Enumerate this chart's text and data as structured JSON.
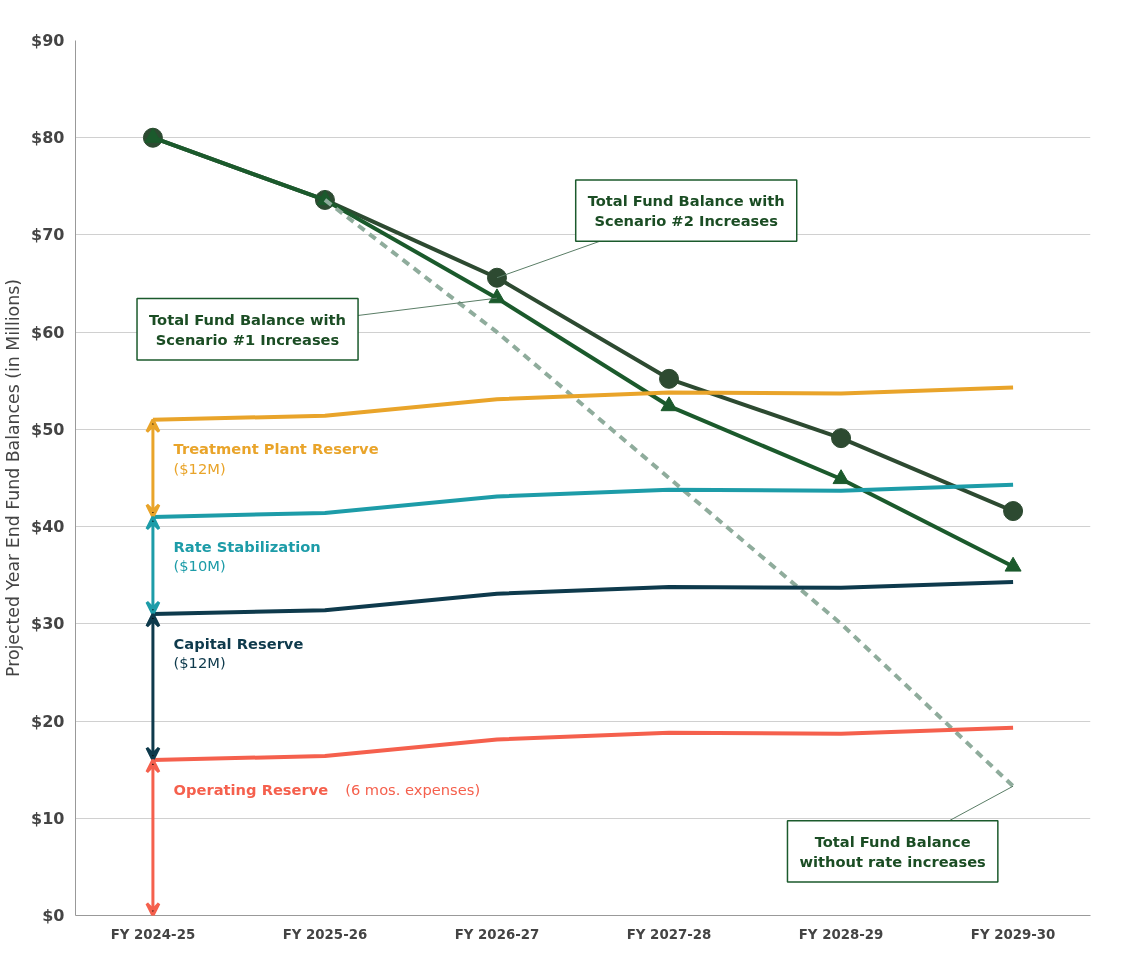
{
  "chart_data": {
    "type": "line",
    "ylabel": "Projected Year End Fund Balances (in Millions)",
    "categories": [
      "FY 2024-25",
      "FY 2025-26",
      "FY 2026-27",
      "FY 2027-28",
      "FY 2028-29",
      "FY 2029-30"
    ],
    "series": [
      {
        "color": "#2d4a31",
        "marker": "circle",
        "line_style": "solid",
        "values": [
          80,
          73.6,
          65.6,
          55.2,
          49.1,
          41.6
        ]
      },
      {
        "color": "#1b5a2c",
        "marker": "triangle",
        "line_style": "solid",
        "values": [
          80,
          73.6,
          63.5,
          52.4,
          44.9,
          35.9
        ]
      },
      {
        "color": "#8fac9c",
        "marker": "none",
        "line_style": "dashed",
        "values": [
          null,
          73.6,
          60,
          45,
          30,
          13.3
        ]
      },
      {
        "color": "#e9a42a",
        "marker": "none",
        "line_style": "solid",
        "values": [
          51,
          51.4,
          53.1,
          53.8,
          53.7,
          54.3
        ]
      },
      {
        "color": "#1d9ca8",
        "marker": "none",
        "line_style": "solid",
        "values": [
          41,
          41.4,
          43.1,
          43.8,
          43.7,
          44.3
        ]
      },
      {
        "color": "#0e3a4c",
        "marker": "none",
        "line_style": "solid",
        "values": [
          31,
          31.4,
          33.1,
          33.8,
          33.7,
          34.3
        ]
      },
      {
        "color": "#f5604d",
        "marker": "none",
        "line_style": "solid",
        "values": [
          16,
          16.4,
          18.1,
          18.8,
          18.7,
          19.3
        ]
      }
    ],
    "ylim": [
      0,
      90
    ],
    "yticks": [
      {
        "value": 0,
        "label": "$0"
      },
      {
        "value": 10,
        "label": "$10"
      },
      {
        "value": 20,
        "label": "$20"
      },
      {
        "value": 30,
        "label": "$30"
      },
      {
        "value": 40,
        "label": "$40"
      },
      {
        "value": 50,
        "label": "$50"
      },
      {
        "value": 60,
        "label": "$60"
      },
      {
        "value": 70,
        "label": "$70"
      },
      {
        "value": 80,
        "label": "$80"
      },
      {
        "value": 90,
        "label": "$90"
      }
    ],
    "grid": "y",
    "annotations": [
      {
        "text": "Total Fund Balance with\nScenario #2 Increases",
        "x": "FY 2026-27",
        "y": 65.6
      },
      {
        "text": "Total Fund Balance with\nScenario #1 Increases",
        "x": "FY 2026-27",
        "y": 63.5
      },
      {
        "text": "Total Fund Balance\nwithout rate increases",
        "x": "FY 2029-30",
        "y": 13.3
      },
      "Treatment Plant Reserve",
      "($12M)",
      "Rate Stabilization",
      "($10M)",
      "Capital Reserve",
      "($12M)",
      "Operating Reserve",
      "(6 mos. expenses)"
    ]
  }
}
